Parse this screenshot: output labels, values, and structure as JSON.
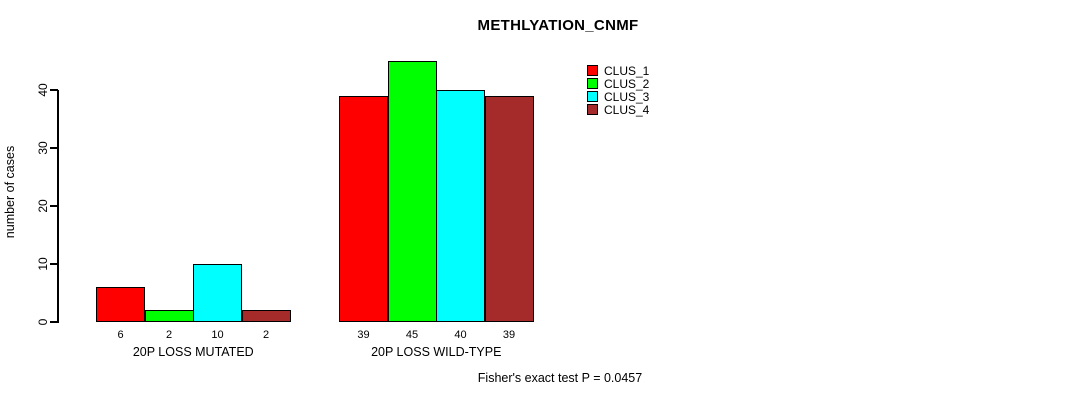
{
  "chart_data": {
    "type": "bar",
    "title": "METHLYATION_CNMF",
    "xlabel": "",
    "ylabel": "number of cases",
    "ylim": [
      0,
      45
    ],
    "yticks": [
      0,
      10,
      20,
      30,
      40
    ],
    "grid": false,
    "legend_position": "top-right-inside",
    "bar_value_labels_shown": true,
    "categories": [
      "20P LOSS MUTATED",
      "20P LOSS WILD-TYPE"
    ],
    "series": [
      {
        "name": "CLUS_1",
        "color": "#FF0000",
        "values": [
          6,
          39
        ]
      },
      {
        "name": "CLUS_2",
        "color": "#00FF00",
        "values": [
          2,
          45
        ]
      },
      {
        "name": "CLUS_3",
        "color": "#00FFFF",
        "values": [
          10,
          40
        ]
      },
      {
        "name": "CLUS_4",
        "color": "#A52A2A",
        "values": [
          2,
          39
        ]
      }
    ],
    "groups": [
      {
        "label": "20P LOSS MUTATED",
        "values": [
          6,
          2,
          10,
          2
        ]
      },
      {
        "label": "20P LOSS WILD-TYPE",
        "values": [
          39,
          45,
          40,
          39
        ]
      }
    ],
    "footnote": "Fisher's exact test P = 0.0457"
  },
  "colors": {
    "background": "#FFFFFF",
    "axis": "#000000",
    "text": "#000000",
    "clus_1": "#FF0000",
    "clus_2": "#00FF00",
    "clus_3": "#00FFFF",
    "clus_4": "#A52A2A"
  }
}
